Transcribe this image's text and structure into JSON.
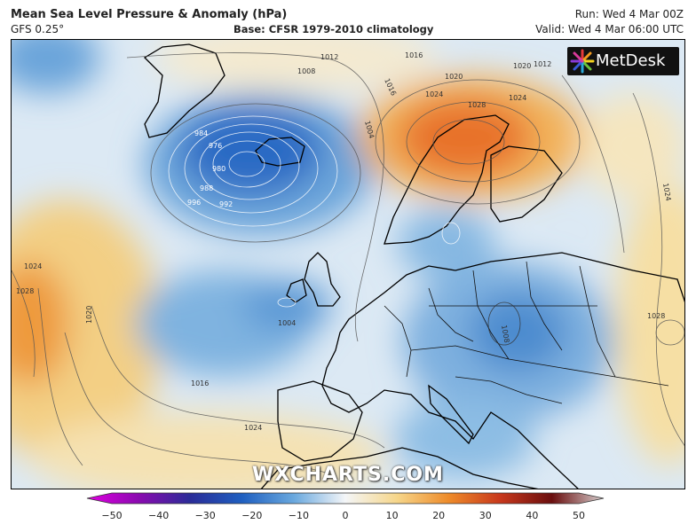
{
  "header": {
    "title": "Mean Sea Level Pressure & Anomaly (hPa)",
    "model": "GFS 0.25°",
    "base": "Base: CFSR 1979-2010 climatology",
    "run": "Run: Wed 4 Mar 00Z",
    "valid": "Valid: Wed 4 Mar 06:00 UTC"
  },
  "logo": {
    "text": "MetDesk"
  },
  "watermark": "WXCHARTS.COM",
  "isobars": {
    "labels": [
      "1012",
      "1016",
      "1020",
      "1024",
      "1028",
      "1008",
      "1004",
      "976",
      "980",
      "984",
      "988",
      "992",
      "996",
      "1012",
      "1016",
      "1020",
      "1024",
      "1028",
      "1024",
      "1020",
      "1016",
      "1024",
      "1004",
      "1008",
      "1028",
      "1024"
    ]
  },
  "colorbar": {
    "ticks": [
      "−50",
      "−40",
      "−30",
      "−20",
      "−10",
      "0",
      "10",
      "20",
      "30",
      "40",
      "50"
    ],
    "colors": {
      "neg50": "#e100e1",
      "neg40": "#8a0ab0",
      "neg30": "#2a2c98",
      "neg20": "#1f5fc0",
      "neg10": "#69a8de",
      "zero": "#f4f6f8",
      "pos10": "#f6d68a",
      "pos20": "#ee8b2a",
      "pos30": "#c8381c",
      "pos40": "#6a0e0e",
      "pos50": "#d8d0d0"
    }
  }
}
